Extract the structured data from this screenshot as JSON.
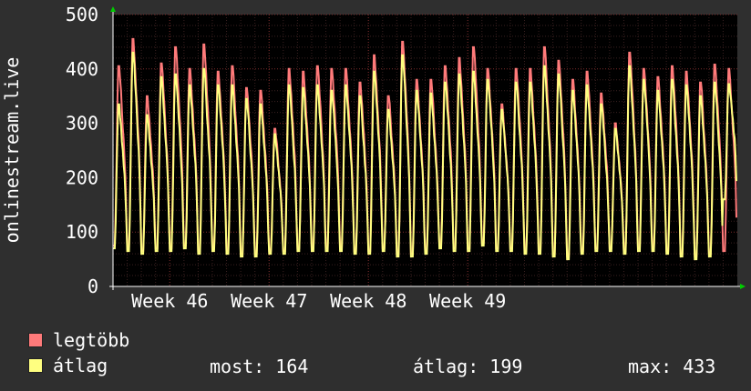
{
  "chart_data": {
    "type": "line",
    "title": "",
    "ylabel": "onlinestream.live",
    "ylim": [
      0,
      500
    ],
    "yticks": [
      0,
      100,
      200,
      300,
      400,
      500
    ],
    "xticks": [
      "Week 46",
      "Week 47",
      "Week 48",
      "Week 49"
    ],
    "grid": true,
    "legend_placement": "bottom-left",
    "series": [
      {
        "name": "legtöbb",
        "color": "#ff7a7a",
        "daily_peaks": [
          405,
          455,
          350,
          410,
          440,
          400,
          445,
          395,
          405,
          365,
          360,
          290,
          400,
          395,
          405,
          400,
          400,
          375,
          425,
          350,
          450,
          380,
          380,
          405,
          420,
          440,
          400,
          335,
          400,
          400,
          440,
          415,
          380,
          395,
          355,
          300,
          430,
          400,
          385,
          405,
          395,
          375,
          408,
          400
        ],
        "daily_troughs": [
          75,
          70,
          65,
          70,
          70,
          75,
          65,
          70,
          65,
          60,
          60,
          65,
          65,
          70,
          70,
          70,
          70,
          65,
          65,
          70,
          60,
          60,
          65,
          75,
          70,
          70,
          80,
          70,
          70,
          65,
          65,
          60,
          55,
          65,
          70,
          70,
          65,
          70,
          70,
          65,
          60,
          55,
          60,
          65
        ]
      },
      {
        "name": "átlag",
        "color": "#ffff80",
        "daily_peaks": [
          335,
          430,
          315,
          385,
          390,
          370,
          400,
          370,
          370,
          345,
          335,
          280,
          370,
          365,
          370,
          360,
          370,
          350,
          395,
          325,
          425,
          360,
          355,
          375,
          390,
          395,
          380,
          325,
          375,
          375,
          405,
          390,
          360,
          370,
          335,
          290,
          405,
          380,
          360,
          380,
          370,
          350,
          375,
          372
        ],
        "daily_troughs": [
          70,
          65,
          60,
          65,
          65,
          70,
          60,
          65,
          60,
          55,
          55,
          60,
          60,
          65,
          65,
          65,
          65,
          60,
          60,
          65,
          55,
          55,
          60,
          70,
          65,
          65,
          75,
          65,
          65,
          60,
          60,
          55,
          50,
          60,
          65,
          65,
          60,
          65,
          65,
          60,
          55,
          50,
          55,
          160
        ]
      }
    ]
  },
  "legend": {
    "max_label": "legtöbb",
    "avg_label": "átlag"
  },
  "stats": {
    "now": "most: 164",
    "avg": "átlag: 199",
    "max": "max: 433"
  }
}
